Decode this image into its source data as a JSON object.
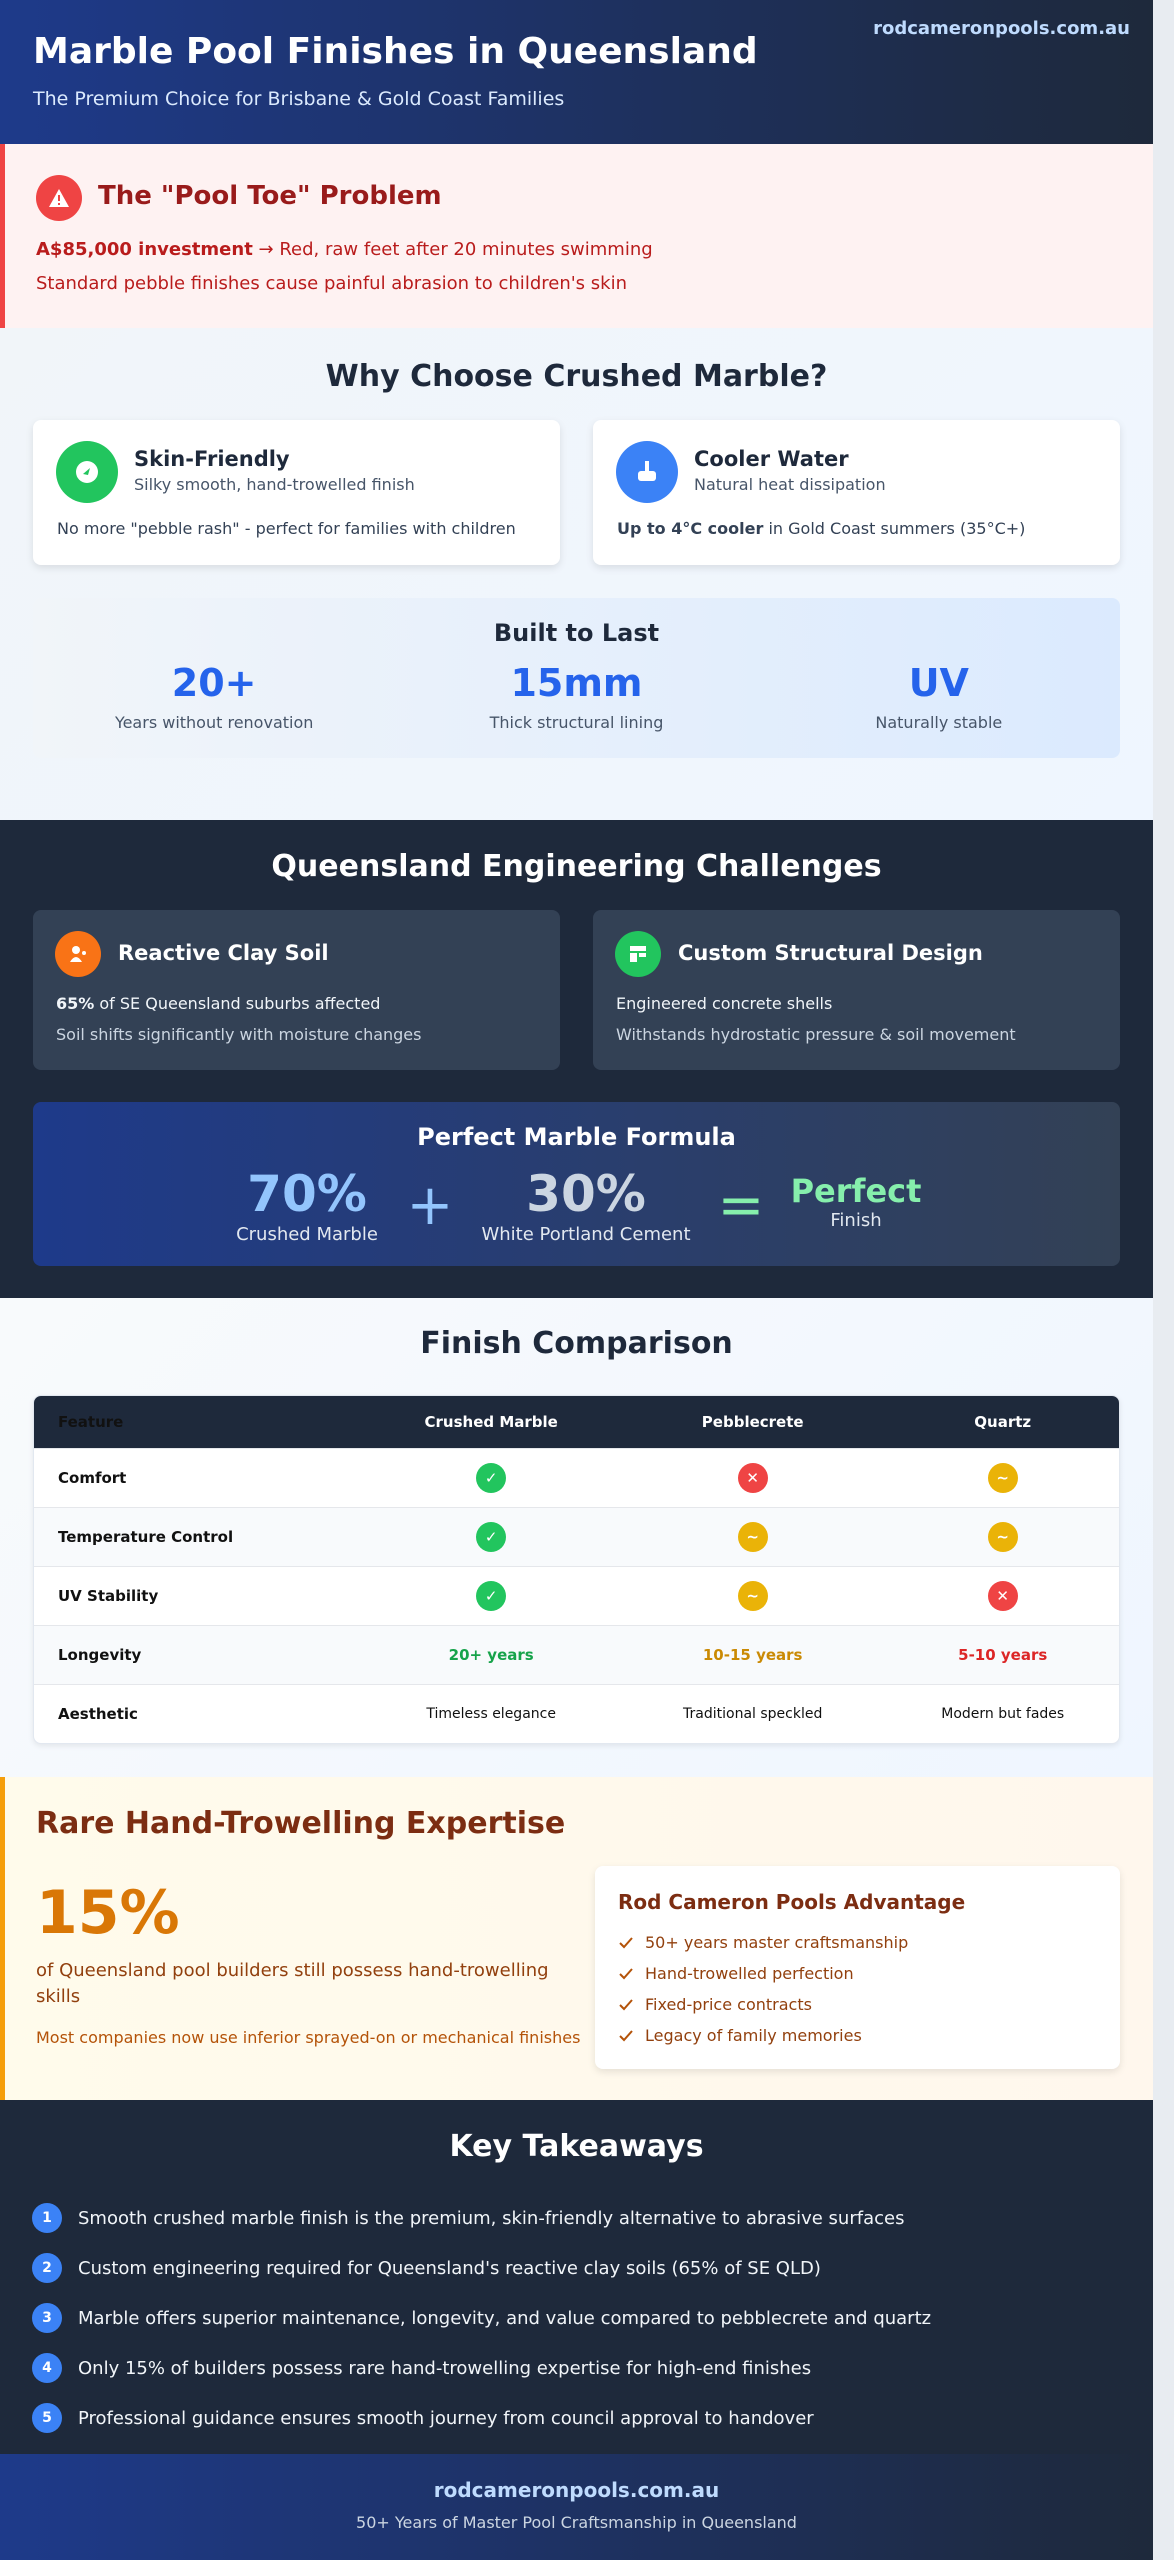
{
  "header": {
    "title": "Marble Pool Finishes in Queensland",
    "subtitle": "The Premium Choice for Brisbane & Gold Coast Families",
    "domain": "rodcameronpools.com.au"
  },
  "problem": {
    "title": "The \"Pool Toe\" Problem",
    "lead_bold": "A$85,000 investment",
    "lead_rest": "→ Red, raw feet after 20 minutes swimming",
    "detail": "Standard pebble finishes cause painful abrasion to children's skin"
  },
  "why": {
    "heading": "Why Choose Crushed Marble?",
    "cards": [
      {
        "title": "Skin-Friendly",
        "subtitle": "Silky smooth, hand-trowelled finish",
        "body": "No more \"pebble rash\" - perfect for families with children"
      },
      {
        "title": "Cooler Water",
        "subtitle": "Natural heat dissipation",
        "body_bold": "Up to 4°C cooler",
        "body_rest": "in Gold Coast summers (35°C+)"
      }
    ],
    "built": {
      "title": "Built to Last",
      "stats": [
        {
          "value": "20+",
          "label": "Years without renovation"
        },
        {
          "value": "15mm",
          "label": "Thick structural lining"
        },
        {
          "value": "UV",
          "label": "Naturally stable"
        }
      ]
    }
  },
  "engineering": {
    "heading": "Queensland Engineering Challenges",
    "cards": [
      {
        "title": "Reactive Clay Soil",
        "line1_bold": "65%",
        "line1_rest": "of SE Queensland suburbs affected",
        "line2": "Soil shifts significantly with moisture changes"
      },
      {
        "title": "Custom Structural Design",
        "line1": "Engineered concrete shells",
        "line2": "Withstands hydrostatic pressure & soil movement"
      }
    ],
    "formula": {
      "title": "Perfect Marble Formula",
      "parts": [
        {
          "value": "70%",
          "label": "Crushed Marble"
        },
        {
          "value": "30%",
          "label": "White Portland Cement"
        }
      ],
      "plus": "+",
      "equals": "=",
      "result": {
        "value": "Perfect",
        "label": "Finish"
      }
    }
  },
  "comparison": {
    "heading": "Finish Comparison",
    "columns": [
      "Feature",
      "Crushed Marble",
      "Pebblecrete",
      "Quartz"
    ],
    "rows": [
      [
        "Comfort",
        "✓",
        "✕",
        "~"
      ],
      [
        "Temperature Control",
        "✓",
        "~",
        "~"
      ],
      [
        "UV Stability",
        "✓",
        "~",
        "✕"
      ],
      [
        "Longevity",
        "20+ years",
        "10-15 years",
        "5-10 years"
      ],
      [
        "Aesthetic",
        "Timeless elegance",
        "Traditional speckled",
        "Modern but fades"
      ]
    ],
    "status_colors": {
      "✓": "#22c55e",
      "✕": "#ef4444",
      "~": "#eab308"
    }
  },
  "expertise": {
    "heading": "Rare Hand-Trowelling Expertise",
    "stat": "15%",
    "stat_text": "of Queensland pool builders still possess hand-trowelling skills",
    "note": "Most companies now use inferior sprayed-on or mechanical finishes",
    "advantage": {
      "title": "Rod Cameron Pools Advantage",
      "items": [
        "50+ years master craftsmanship",
        "Hand-trowelled perfection",
        "Fixed-price contracts",
        "Legacy of family memories"
      ]
    }
  },
  "takeaways": {
    "heading": "Key Takeaways",
    "items": [
      {
        "number": 1,
        "text": "Smooth crushed marble finish is the premium, skin-friendly alternative to abrasive surfaces"
      },
      {
        "number": 2,
        "text": "Custom engineering required for Queensland's reactive clay soils (65% of SE QLD)"
      },
      {
        "number": 3,
        "text": "Marble offers superior maintenance, longevity, and value compared to pebblecrete and quartz"
      },
      {
        "number": 4,
        "text": "Only 15% of builders possess rare hand-trowelling expertise for high-end finishes"
      },
      {
        "number": 5,
        "text": "Professional guidance ensures smooth journey from council approval to handover"
      }
    ]
  },
  "footer": {
    "domain": "rodcameronpools.com.au",
    "tagline": "50+ Years of Master Pool Craftsmanship in Queensland"
  }
}
